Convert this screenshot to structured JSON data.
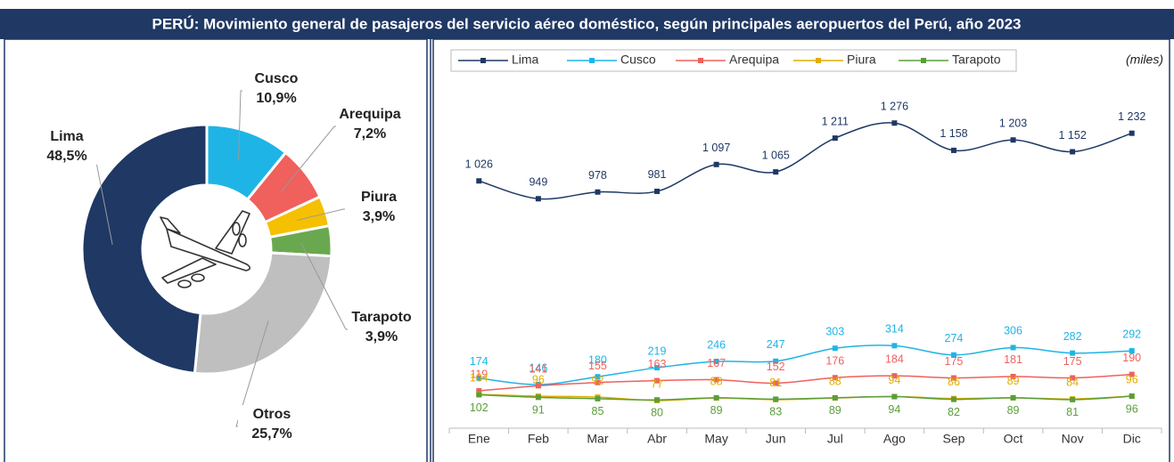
{
  "header": {
    "title": "PERÚ: Movimiento general de pasajeros del servicio aéreo doméstico, según principales aeropuertos del Perú, año 2023"
  },
  "chart_data": [
    {
      "type": "donut",
      "categories": [
        "Cusco",
        "Arequipa",
        "Piura",
        "Tarapoto",
        "Otros",
        "Lima"
      ],
      "values": [
        10.9,
        7.2,
        3.9,
        3.9,
        25.7,
        48.5
      ],
      "value_labels": [
        "10,9%",
        "7,2%",
        "3,9%",
        "3,9%",
        "25,7%",
        "48,5%"
      ],
      "colors": [
        "#1fb4e6",
        "#f0605d",
        "#f5c000",
        "#6aa84f",
        "#bfbfbf",
        "#1f3864"
      ]
    },
    {
      "type": "line",
      "annotation": "(miles)",
      "categories": [
        "Ene",
        "Feb",
        "Mar",
        "Abr",
        "May",
        "Jun",
        "Jul",
        "Ago",
        "Sep",
        "Oct",
        "Nov",
        "Dic"
      ],
      "ylim": [
        0,
        1500
      ],
      "series": [
        {
          "name": "Lima",
          "color": "#1f3864",
          "values": [
            1026,
            949,
            978,
            981,
            1097,
            1065,
            1211,
            1276,
            1158,
            1203,
            1152,
            1232
          ],
          "value_labels": [
            "1 026",
            "949",
            "978",
            "981",
            "1 097",
            "1 065",
            "1 211",
            "1 276",
            "1 158",
            "1 203",
            "1 152",
            "1 232"
          ]
        },
        {
          "name": "Cusco",
          "color": "#1fb4e6",
          "values": [
            174,
            146,
            180,
            219,
            246,
            247,
            303,
            314,
            274,
            306,
            282,
            292
          ]
        },
        {
          "name": "Arequipa",
          "color": "#f0605d",
          "values": [
            119,
            141,
            155,
            163,
            167,
            152,
            176,
            184,
            175,
            181,
            175,
            190
          ]
        },
        {
          "name": "Piura",
          "color": "#e0ad00",
          "values": [
            104,
            96,
            92,
            77,
            88,
            81,
            88,
            94,
            86,
            89,
            84,
            96
          ]
        },
        {
          "name": "Tarapoto",
          "color": "#5a9e3a",
          "values": [
            102,
            91,
            85,
            80,
            89,
            83,
            89,
            94,
            82,
            89,
            81,
            96
          ]
        }
      ]
    }
  ]
}
